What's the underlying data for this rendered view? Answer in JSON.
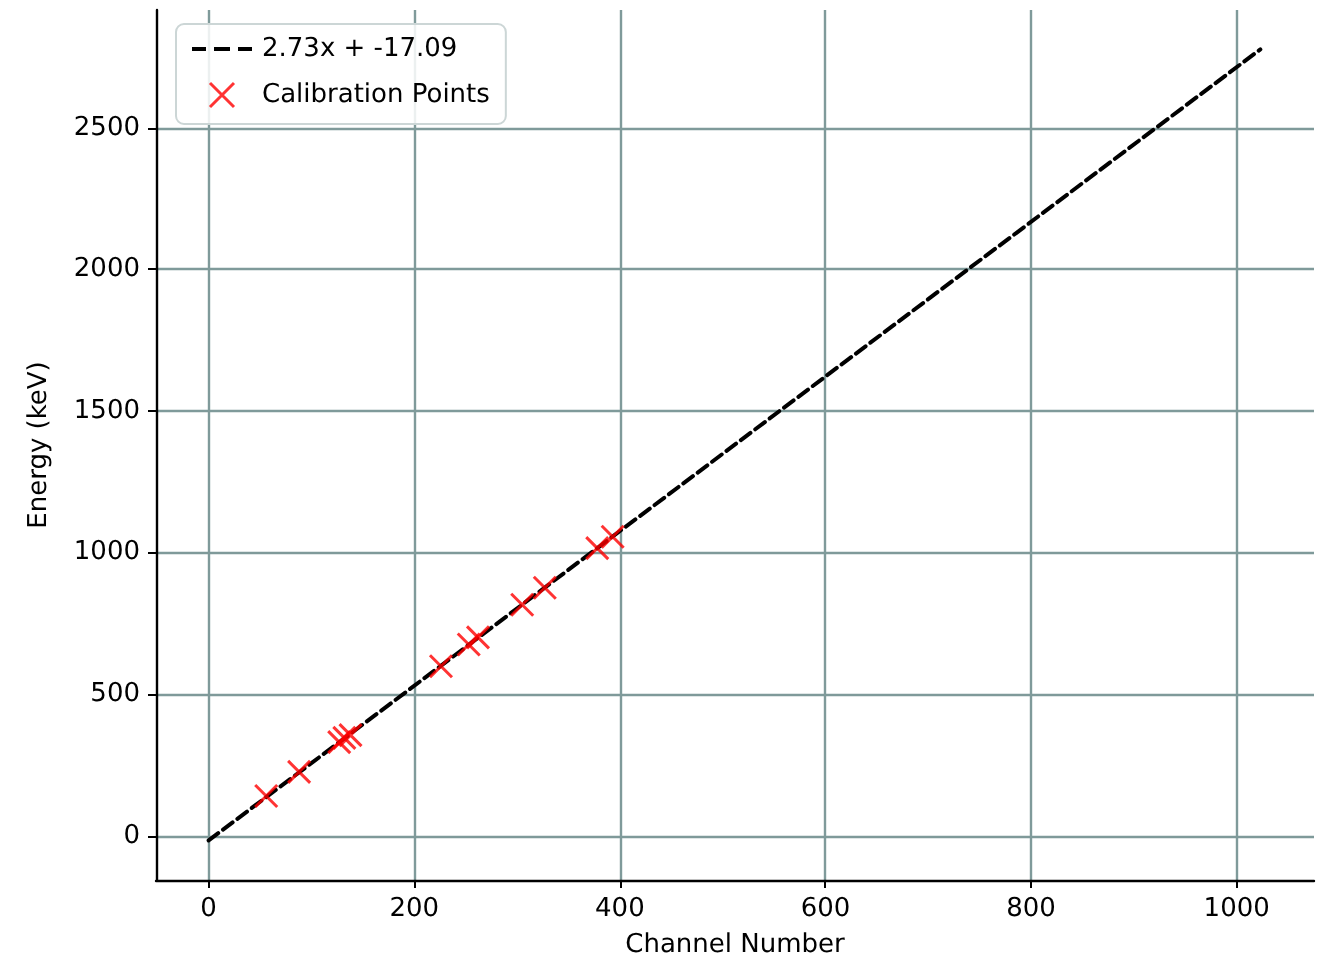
{
  "chart_data": {
    "type": "scatter",
    "xlabel": "Channel Number",
    "ylabel": "Energy (keV)",
    "xlim": [
      -51.2,
      1075.2
    ],
    "ylim": [
      -156.7,
      2915
    ],
    "xticks": [
      0,
      200,
      400,
      600,
      800,
      1000
    ],
    "yticks": [
      0,
      500,
      1000,
      1500,
      2000,
      2500
    ],
    "grid": true,
    "legend": "top left",
    "series": [
      {
        "name": "2.73x + -17.09",
        "type": "line",
        "color": "#000000",
        "marker": "none",
        "line_style": "dashed",
        "x": [
          0,
          1023
        ],
        "values": [
          -17,
          2776
        ]
      },
      {
        "name": "Calibration Points",
        "color": "#ff0000",
        "marker": "cross",
        "x": [
          56,
          88,
          127,
          132,
          138,
          226,
          253,
          262,
          305,
          327,
          378,
          393
        ],
        "values": [
          140,
          225,
          330,
          345,
          355,
          598,
          675,
          700,
          815,
          875,
          1015,
          1055
        ]
      }
    ]
  }
}
